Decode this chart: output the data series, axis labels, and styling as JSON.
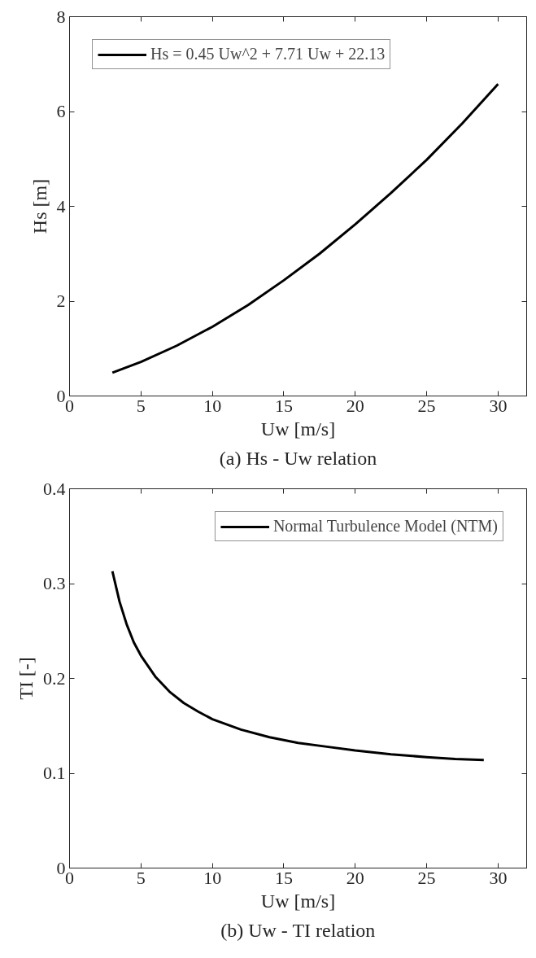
{
  "chart_data": [
    {
      "type": "line",
      "xlabel": "Uw [m/s]",
      "ylabel": "Hs [m]",
      "annotations": [
        "(a) Hs - Uw relation"
      ],
      "xlim": [
        0,
        32
      ],
      "xticks": [
        0,
        5,
        10,
        15,
        20,
        25,
        30
      ],
      "ylim": [
        0,
        8
      ],
      "yticks": [
        0,
        2,
        4,
        6,
        8
      ],
      "grid": false,
      "legend": "top left",
      "line_style": "solid",
      "x": [
        3,
        5,
        7.5,
        10,
        12.5,
        15,
        17.5,
        20,
        22.5,
        25,
        27.5,
        30
      ],
      "series": [
        {
          "name": "Hs = 0.45 Uw^2 + 7.71 Uw + 22.13",
          "color": "#000000",
          "values": [
            0.49,
            0.72,
            1.06,
            1.46,
            1.92,
            2.44,
            3.0,
            3.62,
            4.28,
            4.98,
            5.75,
            6.58
          ]
        }
      ]
    },
    {
      "type": "line",
      "xlabel": "Uw [m/s]",
      "ylabel": "TI [-]",
      "annotations": [
        "(b) Uw - TI relation"
      ],
      "xlim": [
        0,
        32
      ],
      "xticks": [
        0,
        5,
        10,
        15,
        20,
        25,
        30
      ],
      "ylim": [
        0,
        0.4
      ],
      "yticks": [
        0,
        0.1,
        0.2,
        0.3,
        0.4
      ],
      "grid": false,
      "legend": "top right",
      "line_style": "solid",
      "x": [
        3,
        3.5,
        4,
        4.5,
        5,
        6,
        7,
        8,
        9,
        10,
        12,
        14,
        16,
        18,
        20,
        22.5,
        25,
        27,
        29
      ],
      "series": [
        {
          "name": "Normal Turbulence Model (NTM)",
          "color": "#000000",
          "values": [
            0.313,
            0.281,
            0.257,
            0.238,
            0.224,
            0.202,
            0.186,
            0.174,
            0.165,
            0.157,
            0.146,
            0.138,
            0.132,
            0.128,
            0.124,
            0.12,
            0.117,
            0.115,
            0.114
          ]
        }
      ]
    }
  ]
}
